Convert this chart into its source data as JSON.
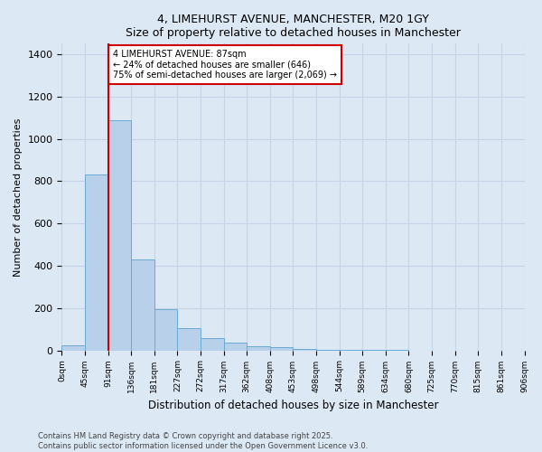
{
  "title1": "4, LIMEHURST AVENUE, MANCHESTER, M20 1GY",
  "title2": "Size of property relative to detached houses in Manchester",
  "xlabel": "Distribution of detached houses by size in Manchester",
  "ylabel": "Number of detached properties",
  "footnote": "Contains HM Land Registry data © Crown copyright and database right 2025.\nContains public sector information licensed under the Open Government Licence v3.0.",
  "bin_labels": [
    "0sqm",
    "45sqm",
    "91sqm",
    "136sqm",
    "181sqm",
    "227sqm",
    "272sqm",
    "317sqm",
    "362sqm",
    "408sqm",
    "453sqm",
    "498sqm",
    "544sqm",
    "589sqm",
    "634sqm",
    "680sqm",
    "725sqm",
    "770sqm",
    "815sqm",
    "861sqm",
    "906sqm"
  ],
  "bar_values": [
    25,
    830,
    1090,
    430,
    195,
    105,
    60,
    35,
    20,
    15,
    5,
    3,
    2,
    1,
    1,
    0,
    0,
    0,
    0,
    0
  ],
  "bar_color": "#b8d0ea",
  "bar_edgecolor": "#6aaad4",
  "grid_color": "#c5d5e5",
  "background_color": "#dce8f4",
  "vline_x_bin": 2,
  "vline_color": "#cc0000",
  "annotation_line1": "4 LIMEHURST AVENUE: 87sqm",
  "annotation_line2": "← 24% of detached houses are smaller (646)",
  "annotation_line3": "75% of semi-detached houses are larger (2,069) →",
  "annotation_box_color": "#ffffff",
  "annotation_box_edgecolor": "#cc0000",
  "ylim": [
    0,
    1450
  ],
  "bin_width": 45,
  "n_bars": 20
}
